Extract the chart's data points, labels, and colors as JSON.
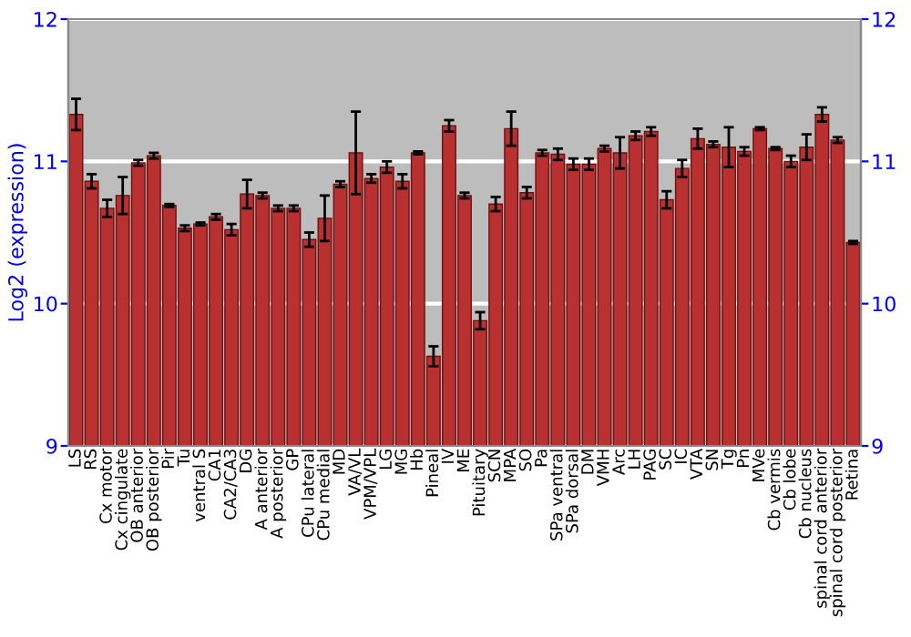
{
  "chart_data": {
    "type": "bar",
    "ylabel": "Log2 (expression)",
    "categories": [
      "LS",
      "RS",
      "Cx motor",
      "Cx cingulate",
      "OB anterior",
      "OB posterior",
      "Pir",
      "Tu",
      "ventral S",
      "CA1",
      "CA2/CA3",
      "DG",
      "A anterior",
      "A posterior",
      "GP",
      "CPu lateral",
      "CPu medial",
      "MD",
      "VA/VL",
      "VPM/VPL",
      "LG",
      "MG",
      "Hb",
      "Pineal",
      "IV",
      "ME",
      "Pituitary",
      "SCN",
      "MPA",
      "SO",
      "Pa",
      "SPa ventral",
      "SPa dorsal",
      "DM",
      "VMH",
      "Arc",
      "LH",
      "PAG",
      "SC",
      "IC",
      "VTA",
      "SN",
      "Tg",
      "Pn",
      "MVe",
      "Cb vermis",
      "Cb lobe",
      "Cb nucleus",
      "spinal cord anterior",
      "spinal cord posterior",
      "Retina"
    ],
    "values": [
      11.33,
      10.86,
      10.67,
      10.76,
      10.99,
      11.04,
      10.69,
      10.53,
      10.56,
      10.61,
      10.52,
      10.77,
      10.76,
      10.67,
      10.67,
      10.45,
      10.6,
      10.84,
      11.06,
      10.88,
      10.96,
      10.86,
      11.06,
      9.63,
      11.25,
      10.76,
      9.88,
      10.7,
      11.23,
      10.78,
      11.06,
      11.05,
      10.98,
      10.98,
      11.09,
      11.06,
      11.18,
      11.21,
      10.73,
      10.95,
      11.16,
      11.12,
      11.1,
      11.07,
      11.23,
      11.09,
      11.0,
      11.1,
      11.33,
      11.15,
      10.43
    ],
    "errors": [
      0.11,
      0.05,
      0.06,
      0.13,
      0.02,
      0.02,
      0.01,
      0.02,
      0.01,
      0.02,
      0.04,
      0.1,
      0.02,
      0.02,
      0.02,
      0.05,
      0.16,
      0.02,
      0.29,
      0.03,
      0.04,
      0.05,
      0.01,
      0.07,
      0.04,
      0.02,
      0.06,
      0.05,
      0.12,
      0.04,
      0.02,
      0.04,
      0.04,
      0.04,
      0.02,
      0.11,
      0.03,
      0.03,
      0.06,
      0.06,
      0.07,
      0.02,
      0.14,
      0.03,
      0.01,
      0.01,
      0.04,
      0.09,
      0.05,
      0.02,
      0.01
    ],
    "color": "#b83030",
    "ylim": [
      9,
      12
    ],
    "yticks": [
      9,
      10,
      11,
      12
    ],
    "y2lim": [
      9,
      12
    ],
    "y2ticks": [
      9,
      10,
      11,
      12
    ],
    "grid": "y",
    "legend": false
  }
}
